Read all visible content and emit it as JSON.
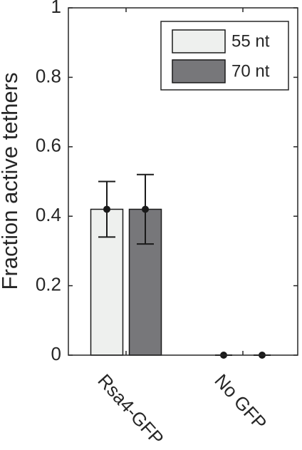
{
  "chart_data": {
    "type": "bar",
    "ylabel": "Fraction active tethers",
    "categories": [
      "Rsa4-GFP",
      "No GFP"
    ],
    "series": [
      {
        "name": "55 nt",
        "color": "#eef0ee",
        "values": [
          0.42,
          0
        ],
        "errors": [
          0.08,
          0
        ]
      },
      {
        "name": "70 nt",
        "color": "#77777a",
        "values": [
          0.42,
          0
        ],
        "errors": [
          0.1,
          0
        ]
      }
    ],
    "ylim": [
      0,
      1
    ],
    "yticks": [
      0,
      0.2,
      0.4,
      0.6,
      0.8,
      1
    ],
    "legend": "top-right"
  }
}
